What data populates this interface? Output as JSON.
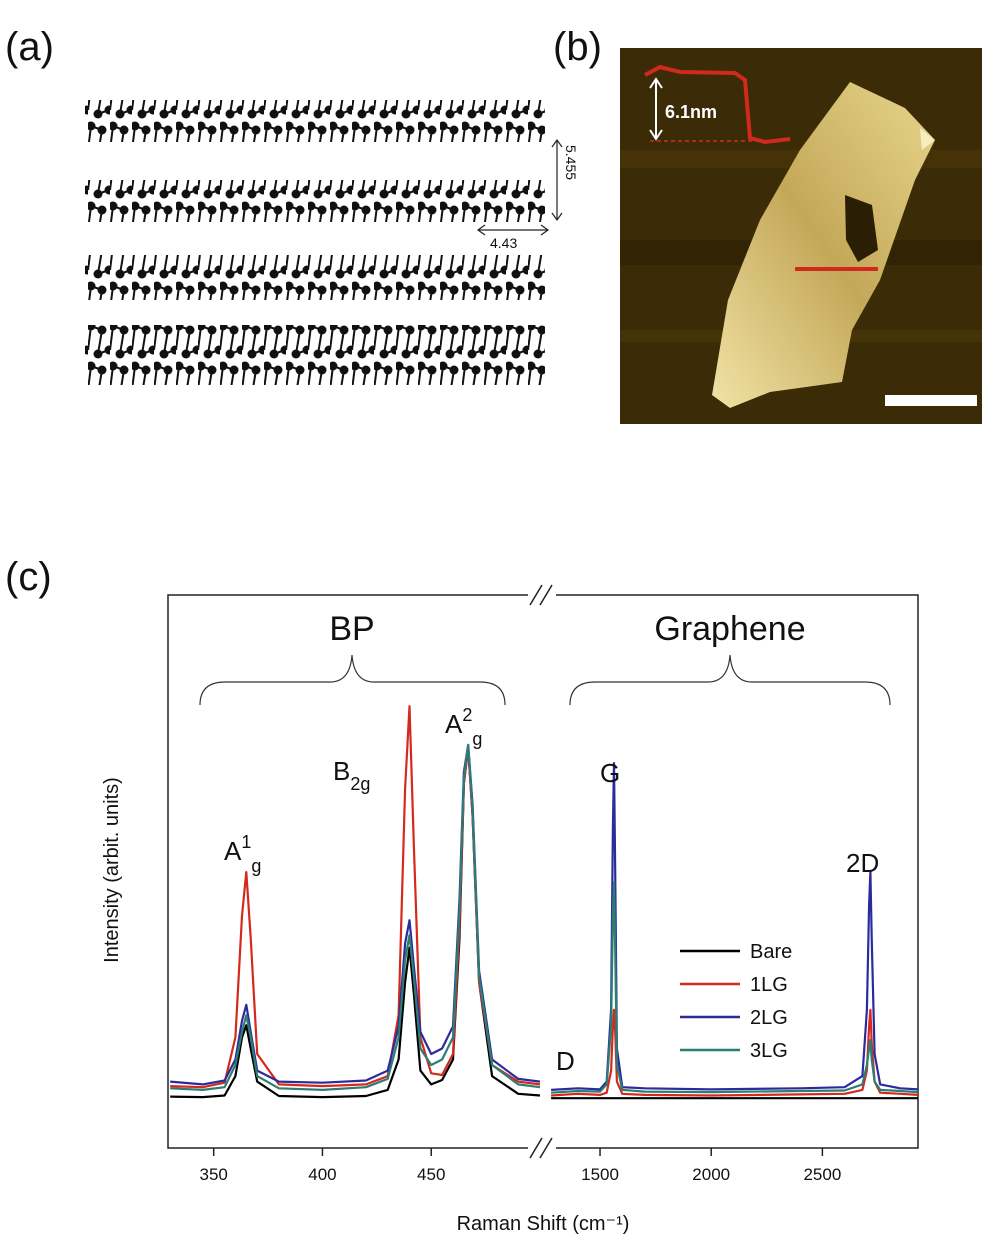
{
  "panels": {
    "a": {
      "label": "(a)",
      "dim_vertical": "5.455",
      "dim_horizontal": "4.43"
    },
    "b": {
      "label": "(b)",
      "step_height": "6.1nm"
    },
    "c": {
      "label": "(c)"
    }
  },
  "chart_data": [
    {
      "type": "line",
      "title": "BP",
      "xlabel": "Raman Shift (cm⁻¹)",
      "ylabel": "Intensity (arbit. units)",
      "xlim": [
        329,
        500
      ],
      "xticks": [
        350,
        400,
        450
      ],
      "ylim": [
        0,
        100
      ],
      "x": [
        330,
        345,
        355,
        360,
        363,
        365,
        367,
        370,
        380,
        400,
        420,
        430,
        435,
        438,
        440,
        442,
        445,
        450,
        455,
        460,
        463,
        465,
        467,
        469,
        472,
        478,
        490,
        500
      ],
      "series": [
        {
          "name": "Bare",
          "color": "#000000",
          "values": [
            9.3,
            9.2,
            9.5,
            13,
            20,
            22.2,
            18,
            12,
            9.4,
            9.2,
            9.4,
            10.5,
            16,
            30,
            36.2,
            28,
            14,
            11.5,
            12.3,
            16,
            38,
            66,
            72.3,
            60,
            30,
            13,
            9.8,
            9.5
          ]
        },
        {
          "name": "1LG",
          "color": "#d42a1e",
          "values": [
            11.2,
            11,
            11.8,
            20,
            42,
            49.9,
            38,
            17,
            11.5,
            11.2,
            11.5,
            13,
            24,
            65,
            79.9,
            55,
            20,
            13.5,
            13.2,
            17,
            40,
            66,
            72.3,
            60,
            30,
            15,
            12,
            11.5
          ]
        },
        {
          "name": "2LG",
          "color": "#2b2b9c",
          "values": [
            12,
            11.5,
            12.2,
            16,
            23,
            25.9,
            21,
            14,
            12,
            11.8,
            12.2,
            14,
            22,
            37,
            41.2,
            33,
            21,
            17,
            18,
            22,
            45,
            68,
            72.9,
            62,
            32,
            16,
            12.5,
            12
          ]
        },
        {
          "name": "3LG",
          "color": "#2e7d74",
          "values": [
            10.8,
            10.5,
            11,
            15,
            21,
            24,
            20,
            13,
            10.8,
            10.5,
            11,
            12.5,
            20,
            34,
            38.5,
            31,
            18,
            15,
            16,
            20,
            43,
            67,
            72.9,
            61,
            31,
            15,
            11.5,
            11
          ]
        }
      ],
      "annotations": [
        {
          "text": "A",
          "sup": "1",
          "sub": "g"
        },
        {
          "text": "B",
          "sub": "2g"
        },
        {
          "text": "A",
          "sup": "2",
          "sub": "g"
        }
      ]
    },
    {
      "type": "line",
      "title": "Graphene",
      "xlim": [
        1275,
        2930
      ],
      "xticks": [
        1500,
        2000,
        2500
      ],
      "ylim": [
        0,
        100
      ],
      "legend": true,
      "x": [
        1280,
        1400,
        1500,
        1530,
        1550,
        1558,
        1563,
        1568,
        1576,
        1600,
        1700,
        2000,
        2400,
        2600,
        2680,
        2700,
        2710,
        2716,
        2722,
        2735,
        2760,
        2850,
        2930
      ],
      "series": [
        {
          "name": "Bare",
          "color": "#000000",
          "values": [
            9,
            9,
            9,
            9,
            9,
            9,
            9,
            9,
            9,
            9,
            9,
            9,
            9,
            9,
            9,
            9,
            9,
            9,
            9,
            9,
            9,
            9,
            9
          ]
        },
        {
          "name": "1LG",
          "color": "#d42a1e",
          "values": [
            9.5,
            9.8,
            9.6,
            10,
            14,
            22,
            25,
            21,
            12,
            9.8,
            9.6,
            9.5,
            9.7,
            9.8,
            10.5,
            14,
            22,
            25,
            19,
            12,
            10,
            9.8,
            9.6
          ]
        },
        {
          "name": "2LG",
          "color": "#2b2b9c",
          "values": [
            10.5,
            10.8,
            10.6,
            12,
            25,
            58,
            69.6,
            50,
            18,
            11,
            10.8,
            10.6,
            10.8,
            11,
            13,
            25,
            44,
            50,
            38,
            17,
            11.5,
            10.8,
            10.6
          ]
        },
        {
          "name": "3LG",
          "color": "#2e7d74",
          "values": [
            10,
            10.3,
            10.2,
            11.5,
            22,
            42,
            48,
            36,
            15,
            10.5,
            10.2,
            10.1,
            10.3,
            10.4,
            11.5,
            15,
            18,
            19.5,
            16,
            12,
            10.5,
            10.3,
            10.1
          ]
        }
      ],
      "annotations": [
        {
          "text": "G"
        },
        {
          "text": "2D"
        },
        {
          "text": "D"
        }
      ]
    }
  ]
}
